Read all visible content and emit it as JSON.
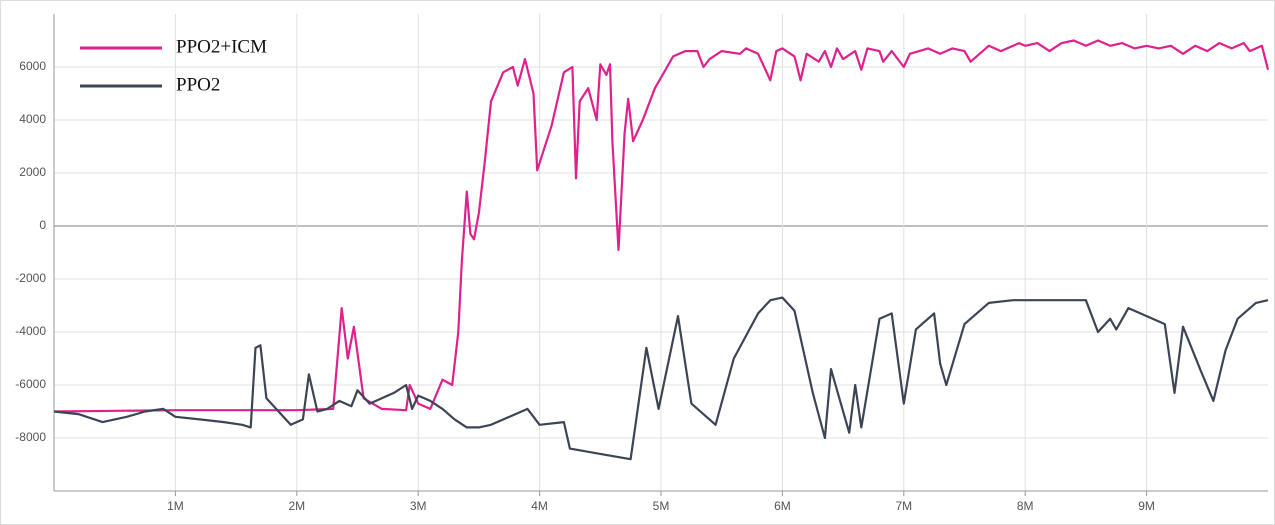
{
  "chart_data": {
    "type": "line",
    "series": [
      {
        "name": "PPO2+ICM",
        "color": "#e0208c",
        "x": [
          0,
          1000000,
          2000000,
          2300000,
          2370000,
          2420000,
          2470000,
          2550000,
          2700000,
          2900000,
          2930000,
          3000000,
          3100000,
          3200000,
          3280000,
          3330000,
          3360000,
          3400000,
          3430000,
          3460000,
          3500000,
          3550000,
          3600000,
          3700000,
          3780000,
          3820000,
          3880000,
          3950000,
          3980000,
          4100000,
          4200000,
          4270000,
          4300000,
          4330000,
          4400000,
          4470000,
          4500000,
          4550000,
          4580000,
          4600000,
          4650000,
          4700000,
          4730000,
          4770000,
          4850000,
          4950000,
          5050000,
          5100000,
          5200000,
          5300000,
          5350000,
          5400000,
          5500000,
          5650000,
          5700000,
          5800000,
          5850000,
          5900000,
          5950000,
          6000000,
          6100000,
          6150000,
          6200000,
          6300000,
          6350000,
          6400000,
          6450000,
          6500000,
          6600000,
          6650000,
          6700000,
          6800000,
          6830000,
          6900000,
          7000000,
          7050000,
          7200000,
          7300000,
          7400000,
          7500000,
          7550000,
          7700000,
          7800000,
          7950000,
          8000000,
          8100000,
          8200000,
          8300000,
          8400000,
          8500000,
          8600000,
          8700000,
          8800000,
          8900000,
          9000000,
          9100000,
          9200000,
          9300000,
          9400000,
          9500000,
          9600000,
          9700000,
          9800000,
          9850000,
          9950000,
          10000000
        ],
        "values": [
          -7000,
          -6950,
          -6950,
          -6900,
          -3100,
          -5000,
          -3800,
          -6500,
          -6900,
          -6950,
          -6000,
          -6700,
          -6900,
          -5800,
          -6000,
          -4000,
          -1300,
          1300,
          -300,
          -500,
          500,
          2500,
          4700,
          5800,
          6000,
          5300,
          6300,
          5000,
          2100,
          3800,
          5800,
          6000,
          1800,
          4700,
          5200,
          4000,
          6100,
          5700,
          6100,
          3200,
          -900,
          3500,
          4800,
          3200,
          4000,
          5200,
          6000,
          6400,
          6600,
          6600,
          6000,
          6300,
          6600,
          6500,
          6700,
          6500,
          6000,
          5500,
          6600,
          6700,
          6400,
          5500,
          6500,
          6200,
          6600,
          6000,
          6700,
          6300,
          6600,
          5900,
          6700,
          6600,
          6200,
          6600,
          6000,
          6500,
          6700,
          6500,
          6700,
          6600,
          6200,
          6800,
          6600,
          6900,
          6800,
          6900,
          6600,
          6900,
          7000,
          6800,
          7000,
          6800,
          6900,
          6700,
          6800,
          6700,
          6800,
          6500,
          6800,
          6600,
          6900,
          6700,
          6900,
          6600,
          6800,
          5900
        ]
      },
      {
        "name": "PPO2",
        "color": "#3c4556",
        "x": [
          0,
          200000,
          400000,
          600000,
          750000,
          900000,
          1000000,
          1200000,
          1400000,
          1550000,
          1620000,
          1660000,
          1700000,
          1750000,
          1850000,
          1950000,
          2050000,
          2100000,
          2170000,
          2250000,
          2350000,
          2450000,
          2500000,
          2600000,
          2800000,
          2900000,
          2950000,
          3000000,
          3100000,
          3200000,
          3300000,
          3400000,
          3500000,
          3600000,
          3900000,
          4000000,
          4200000,
          4250000,
          4500000,
          4750000,
          4880000,
          4980000,
          5140000,
          5250000,
          5450000,
          5600000,
          5800000,
          5900000,
          6000000,
          6100000,
          6250000,
          6350000,
          6400000,
          6550000,
          6600000,
          6650000,
          6800000,
          6900000,
          7000000,
          7100000,
          7250000,
          7300000,
          7350000,
          7500000,
          7700000,
          7900000,
          8500000,
          8600000,
          8700000,
          8750000,
          8850000,
          9050000,
          9150000,
          9230000,
          9300000,
          9450000,
          9550000,
          9650000,
          9750000,
          9900000,
          10000000
        ],
        "values": [
          -7000,
          -7100,
          -7400,
          -7200,
          -7000,
          -6900,
          -7200,
          -7300,
          -7400,
          -7500,
          -7600,
          -4600,
          -4500,
          -6500,
          -7000,
          -7500,
          -7300,
          -5600,
          -7000,
          -6900,
          -6600,
          -6800,
          -6200,
          -6700,
          -6300,
          -6000,
          -6900,
          -6400,
          -6600,
          -6900,
          -7300,
          -7600,
          -7600,
          -7500,
          -6900,
          -7500,
          -7400,
          -8400,
          -8600,
          -8800,
          -4600,
          -6900,
          -3400,
          -6700,
          -7500,
          -5000,
          -3300,
          -2800,
          -2700,
          -3200,
          -6300,
          -8000,
          -5400,
          -7800,
          -6000,
          -7600,
          -3500,
          -3300,
          -6700,
          -3900,
          -3300,
          -5200,
          -6000,
          -3700,
          -2900,
          -2800,
          -2800,
          -4000,
          -3500,
          -3900,
          -3100,
          -3500,
          -3700,
          -6300,
          -3800,
          -5500,
          -6600,
          -4700,
          -3500,
          -2900,
          -2800
        ]
      }
    ],
    "xlim": [
      0,
      10000000
    ],
    "xticks": [
      {
        "value": 1000000,
        "label": "1M"
      },
      {
        "value": 2000000,
        "label": "2M"
      },
      {
        "value": 3000000,
        "label": "3M"
      },
      {
        "value": 4000000,
        "label": "4M"
      },
      {
        "value": 5000000,
        "label": "5M"
      },
      {
        "value": 6000000,
        "label": "6M"
      },
      {
        "value": 7000000,
        "label": "7M"
      },
      {
        "value": 8000000,
        "label": "8M"
      },
      {
        "value": 9000000,
        "label": "9M"
      }
    ],
    "ylim": [
      -10000,
      8000
    ],
    "yticks": [
      -8000,
      -6000,
      -4000,
      -2000,
      0,
      2000,
      4000,
      6000
    ],
    "grid": true,
    "legend": "top-left"
  }
}
